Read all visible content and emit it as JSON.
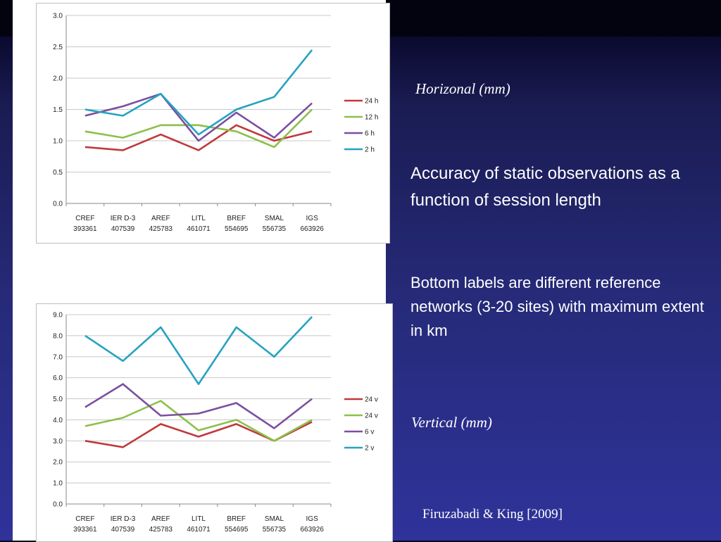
{
  "slide": {
    "horizontal_title": "Horizonal (mm)",
    "description_1": "Accuracy of static observations as a function of session length",
    "description_2": "Bottom labels are different reference networks (3-20 sites) with maximum extent in km",
    "vertical_title": "Vertical (mm)",
    "credit": "Firuzabadi & King [2009]"
  },
  "chart_data": [
    {
      "type": "line",
      "categories": [
        [
          "CREF",
          "393361"
        ],
        [
          "IER D-3",
          "407539"
        ],
        [
          "AREF",
          "425783"
        ],
        [
          "LITL",
          "461071"
        ],
        [
          "BREF",
          "554695"
        ],
        [
          "SMAL",
          "556735"
        ],
        [
          "IGS",
          "663926"
        ]
      ],
      "ylim": [
        0,
        3.0
      ],
      "yticks": [
        "0.0",
        "0.5",
        "1.0",
        "1.5",
        "2.0",
        "2.5",
        "3.0"
      ],
      "grid": true,
      "legend": "right",
      "series": [
        {
          "name": "24 h",
          "color": "#c0393b",
          "values": [
            0.9,
            0.85,
            1.1,
            0.85,
            1.25,
            1.0,
            1.15
          ]
        },
        {
          "name": "12 h",
          "color": "#8cc04a",
          "values": [
            1.15,
            1.05,
            1.25,
            1.25,
            1.15,
            0.9,
            1.5
          ]
        },
        {
          "name": "6 h",
          "color": "#7b4f9e",
          "values": [
            1.4,
            1.55,
            1.75,
            1.0,
            1.45,
            1.05,
            1.6
          ]
        },
        {
          "name": "2 h",
          "color": "#26a3c0",
          "values": [
            1.5,
            1.4,
            1.75,
            1.1,
            1.5,
            1.7,
            2.45
          ]
        }
      ]
    },
    {
      "type": "line",
      "categories": [
        [
          "CREF",
          "393361"
        ],
        [
          "IER D-3",
          "407539"
        ],
        [
          "AREF",
          "425783"
        ],
        [
          "LITL",
          "461071"
        ],
        [
          "BREF",
          "554695"
        ],
        [
          "SMAL",
          "556735"
        ],
        [
          "IGS",
          "663926"
        ]
      ],
      "ylim": [
        0,
        9.0
      ],
      "yticks": [
        "0.0",
        "1.0",
        "2.0",
        "3.0",
        "4.0",
        "5.0",
        "6.0",
        "7.0",
        "8.0",
        "9.0"
      ],
      "grid": true,
      "legend": "right",
      "series": [
        {
          "name": "24 v",
          "color": "#c0393b",
          "values": [
            3.0,
            2.7,
            3.8,
            3.2,
            3.8,
            3.0,
            3.9
          ]
        },
        {
          "name": "24 v",
          "color": "#8cc04a",
          "values": [
            3.7,
            4.1,
            4.9,
            3.5,
            4.0,
            3.0,
            4.0
          ]
        },
        {
          "name": "6 v",
          "color": "#7b4f9e",
          "values": [
            4.6,
            5.7,
            4.2,
            4.3,
            4.8,
            3.6,
            5.0
          ]
        },
        {
          "name": "2 v",
          "color": "#26a3c0",
          "values": [
            8.0,
            6.8,
            8.4,
            5.7,
            8.4,
            7.0,
            8.9
          ]
        }
      ]
    }
  ]
}
